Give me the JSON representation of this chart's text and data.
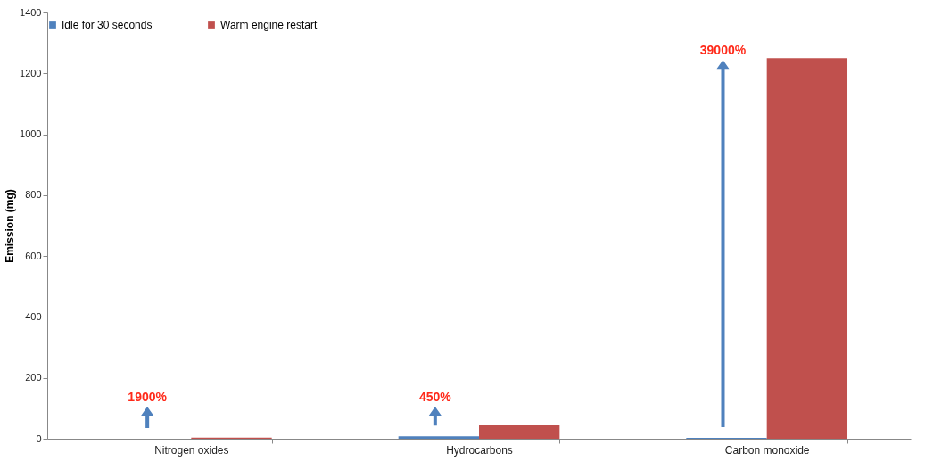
{
  "chart_data": {
    "type": "bar",
    "ylabel": "Emission (mg)",
    "categories": [
      "Nitrogen oxides",
      "Hydrocarbons",
      "Carbon monoxide"
    ],
    "series": [
      {
        "name": "Idle for 30 seconds",
        "color": "#4f81bd",
        "values": [
          0,
          8,
          3
        ]
      },
      {
        "name": "Warm engine restart",
        "color": "#c0504d",
        "values": [
          4,
          44,
          1250
        ]
      }
    ],
    "ylim": [
      0,
      1400
    ],
    "yticks": [
      0,
      200,
      400,
      600,
      800,
      1000,
      1200,
      1400
    ],
    "grid": false,
    "legend": "top",
    "annotations": [
      "1900%",
      "450%",
      "39000%"
    ]
  }
}
